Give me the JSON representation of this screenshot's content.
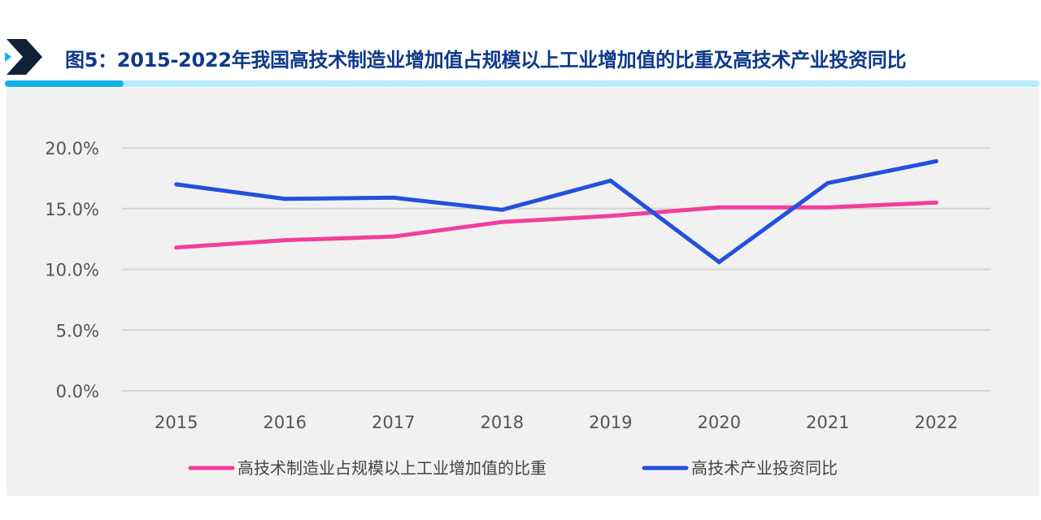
{
  "header": {
    "title": "图5：2015-2022年我国高技术制造业增加值占规模以上工业增加值的比重及高技术产业投资同比",
    "icon": "chevron-right-icon"
  },
  "chart_data": {
    "type": "line",
    "title": "图5：2015-2022年我国高技术制造业增加值占规模以上工业增加值的比重及高技术产业投资同比",
    "categories": [
      "2015",
      "2016",
      "2017",
      "2018",
      "2019",
      "2020",
      "2021",
      "2022"
    ],
    "yticks": [
      "0.0%",
      "5.0%",
      "10.0%",
      "15.0%",
      "20.0%"
    ],
    "ylim": [
      0,
      20
    ],
    "grid": true,
    "legend_placement": "bottom",
    "series": [
      {
        "name": "高技术制造业占规模以上工业增加值的比重",
        "color": "#f23e9c",
        "values": [
          11.8,
          12.4,
          12.7,
          13.9,
          14.4,
          15.1,
          15.1,
          15.5
        ]
      },
      {
        "name": "高技术产业投资同比",
        "color": "#2250df",
        "values": [
          17.0,
          15.8,
          15.9,
          14.9,
          17.3,
          10.6,
          17.1,
          18.9
        ]
      }
    ]
  }
}
